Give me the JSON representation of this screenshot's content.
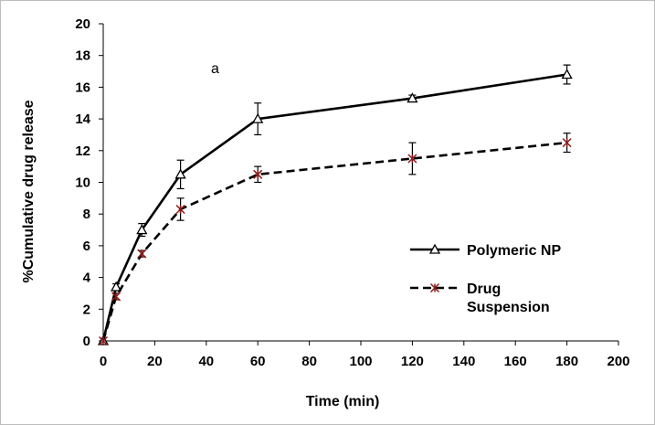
{
  "chart_data": {
    "type": "line",
    "title": "",
    "annotation": "a",
    "xlabel": "Time (min)",
    "ylabel": "%Cumulative drug release",
    "xlim": [
      0,
      200
    ],
    "ylim": [
      0,
      20
    ],
    "x_ticks": [
      "0",
      "20",
      "40",
      "60",
      "80",
      "100",
      "120",
      "140",
      "160",
      "180",
      "200"
    ],
    "y_ticks": [
      "0",
      "2",
      "4",
      "6",
      "8",
      "10",
      "12",
      "14",
      "16",
      "18",
      "20"
    ],
    "grid": false,
    "legend_position": "bottom-right",
    "x": [
      0,
      5,
      15,
      30,
      60,
      120,
      180
    ],
    "series": [
      {
        "name": "Polymeric NP",
        "legend_lines": [
          "Polymeric NP"
        ],
        "values": [
          0,
          3.4,
          7.0,
          10.5,
          14.0,
          15.3,
          16.8
        ],
        "errors": [
          0,
          0.2,
          0.4,
          0.9,
          1.0,
          0.2,
          0.6
        ],
        "line_style": "solid",
        "marker": "triangle",
        "color": "#000000"
      },
      {
        "name": "Drug Suspension",
        "legend_lines": [
          "Drug",
          "Suspension"
        ],
        "values": [
          0,
          2.8,
          5.5,
          8.3,
          10.5,
          11.5,
          12.5
        ],
        "errors": [
          0,
          0.2,
          0.2,
          0.7,
          0.5,
          1.0,
          0.6
        ],
        "line_style": "dashed",
        "marker": "asterisk",
        "color": "#000000",
        "marker_color": "#8b1a1a"
      }
    ]
  }
}
